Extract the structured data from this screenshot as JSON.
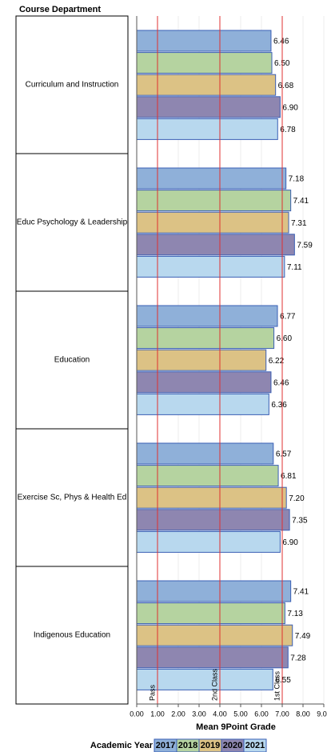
{
  "chart_data": {
    "type": "bar",
    "orientation": "horizontal",
    "category_axis_title": "Course Department",
    "x_label": "Mean 9Point Grade",
    "legend_title": "Academic Year",
    "categories": [
      "Curriculum and Instruction",
      "Educ Psychology & Leadership",
      "Education",
      "Exercise Sc, Phys & Health Ed",
      "Indigenous Education"
    ],
    "series": [
      {
        "name": "2017",
        "color": "#8fb0d9",
        "values": [
          6.46,
          7.18,
          6.77,
          6.57,
          7.41
        ],
        "value_labels": [
          "6.46",
          "7.18",
          "6.77",
          "6.57",
          "7.41"
        ]
      },
      {
        "name": "2018",
        "color": "#b5d3a0",
        "values": [
          6.5,
          7.41,
          6.6,
          6.81,
          7.13
        ],
        "value_labels": [
          "6.50",
          "7.41",
          "6.60",
          "6.81",
          "7.13"
        ]
      },
      {
        "name": "2019",
        "color": "#dcc285",
        "values": [
          6.68,
          7.31,
          6.22,
          7.2,
          7.49
        ],
        "value_labels": [
          "6.68",
          "7.31",
          "6.22",
          "7.20",
          "7.49"
        ]
      },
      {
        "name": "2020",
        "color": "#8e86b0",
        "values": [
          6.9,
          7.59,
          6.46,
          7.35,
          7.28
        ],
        "value_labels": [
          "6.90",
          "7.59",
          "6.46",
          "7.35",
          "7.28"
        ]
      },
      {
        "name": "2021",
        "color": "#b8d8ee",
        "values": [
          6.78,
          7.11,
          6.36,
          6.9,
          6.55
        ],
        "value_labels": [
          "6.78",
          "7.11",
          "6.36",
          "6.90",
          "6.55"
        ]
      }
    ],
    "xlim": [
      0,
      9
    ],
    "xticks": [
      {
        "value": 0,
        "label": "0.00"
      },
      {
        "value": 1,
        "label": "1.00"
      },
      {
        "value": 2,
        "label": "2.00"
      },
      {
        "value": 3,
        "label": "3.00"
      },
      {
        "value": 4,
        "label": "4.00"
      },
      {
        "value": 5,
        "label": "5.00"
      },
      {
        "value": 6,
        "label": "6.00"
      },
      {
        "value": 7,
        "label": "7.00"
      },
      {
        "value": 8,
        "label": "8.00"
      },
      {
        "value": 9,
        "label": "9.00"
      }
    ],
    "reference_lines": [
      {
        "value": 1,
        "label": "Pass"
      },
      {
        "value": 4,
        "label": "2nd Class"
      },
      {
        "value": 7,
        "label": "1st Class"
      }
    ],
    "reference_color": "#e03030",
    "grid": true
  }
}
